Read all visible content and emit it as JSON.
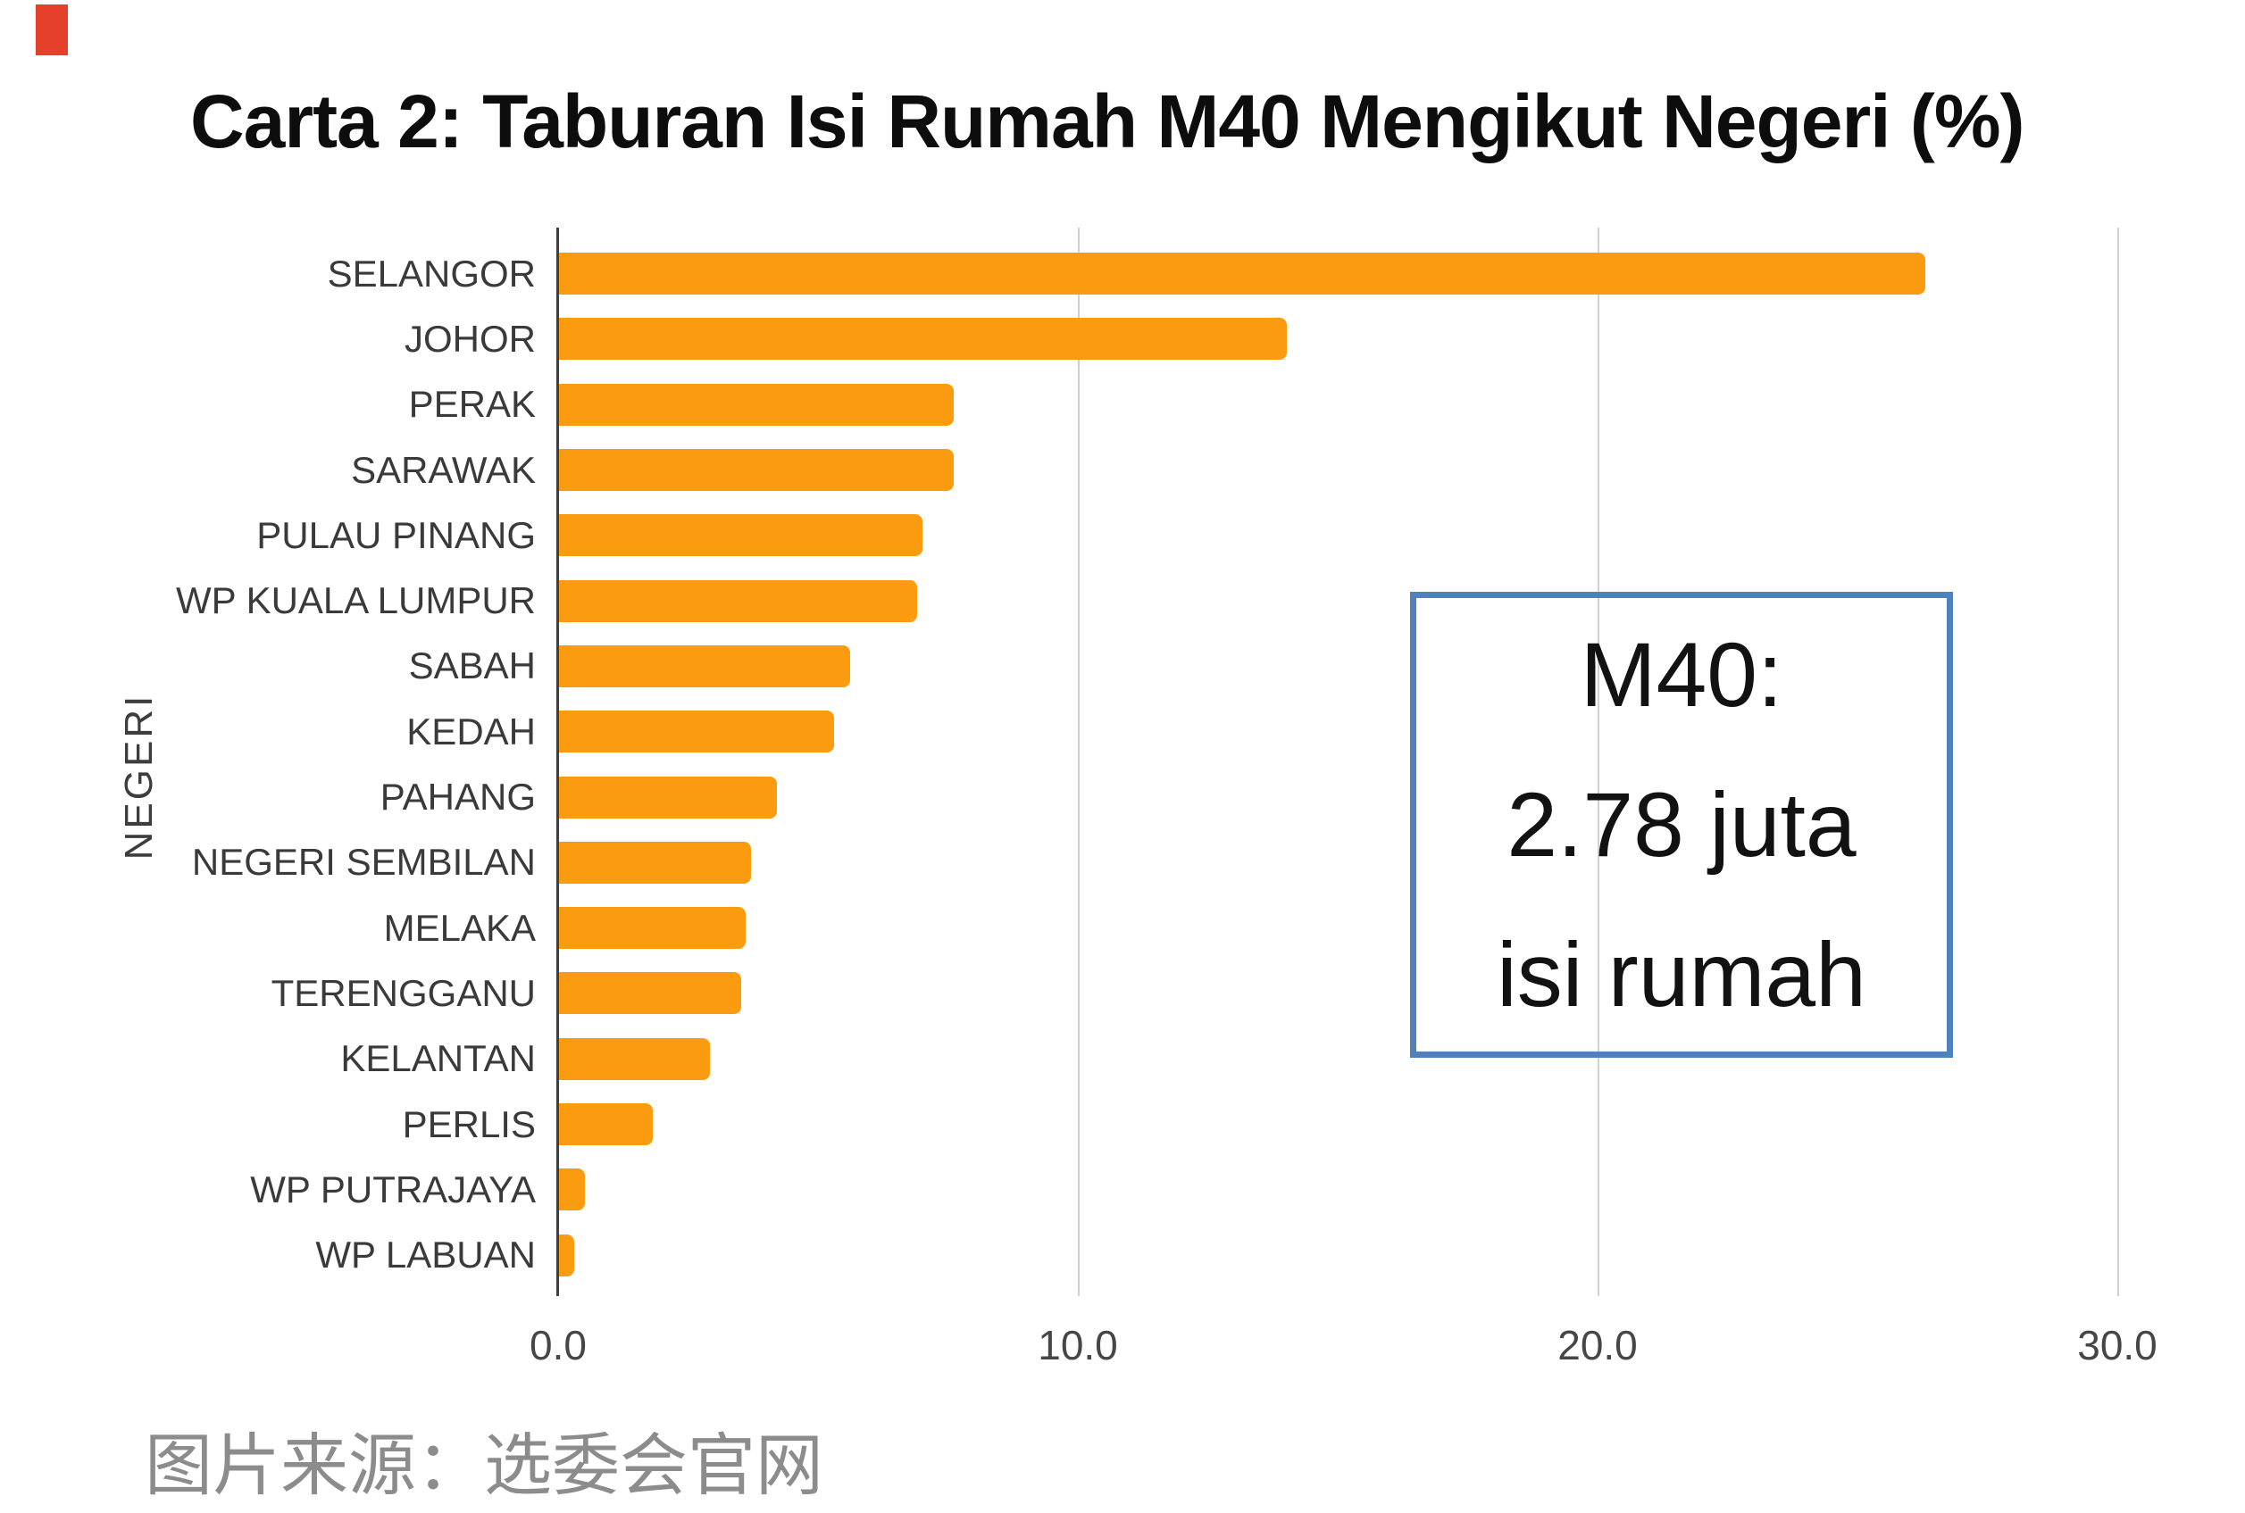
{
  "chart_data": {
    "type": "bar",
    "orientation": "horizontal",
    "title": "Carta 2: Taburan Isi Rumah M40 Mengikut Negeri (%)",
    "ylabel": "NEGERI",
    "xlabel": "",
    "categories": [
      "SELANGOR",
      "JOHOR",
      "PERAK",
      "SARAWAK",
      "PULAU PINANG",
      "WP KUALA LUMPUR",
      "SABAH",
      "KEDAH",
      "PAHANG",
      "NEGERI SEMBILAN",
      "MELAKA",
      "TERENGGANU",
      "KELANTAN",
      "PERLIS",
      "WP PUTRAJAYA",
      "WP LABUAN"
    ],
    "values": [
      26.3,
      14.0,
      7.6,
      7.6,
      7.0,
      6.9,
      5.6,
      5.3,
      4.2,
      3.7,
      3.6,
      3.5,
      2.9,
      1.8,
      0.5,
      0.3
    ],
    "x_ticks": [
      {
        "label": "0.0",
        "value": 0
      },
      {
        "label": "10.0",
        "value": 10
      },
      {
        "label": "20.0",
        "value": 20
      },
      {
        "label": "30.0",
        "value": 30
      }
    ],
    "xlim": [
      0,
      32
    ],
    "grid": "vertical-gridlines-only",
    "legend": "none",
    "bar_color": "#fb9b0f",
    "axis_line_color": "#3f3f3f",
    "gridline_color": "#d2d2d2",
    "annotation": {
      "lines": [
        "M40:",
        "2.78 juta",
        "isi rumah"
      ],
      "border_color": "#4f81bd"
    }
  },
  "footer": {
    "source_caption": "图片来源：选委会官网"
  },
  "decor": {
    "corner_mark_color": "#e5402a"
  }
}
